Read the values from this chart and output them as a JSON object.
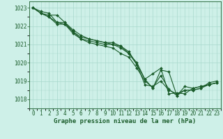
{
  "bg_color": "#cef0e8",
  "line_color": "#1a5c2a",
  "grid_color": "#a8d8cc",
  "xlabel": "Graphe pression niveau de la mer (hPa)",
  "xlabel_fontsize": 6.5,
  "tick_fontsize": 5.5,
  "xlim": [
    -0.5,
    23.5
  ],
  "ylim": [
    1017.5,
    1023.35
  ],
  "yticks": [
    1018,
    1019,
    1020,
    1021,
    1022,
    1023
  ],
  "xticks": [
    0,
    1,
    2,
    3,
    4,
    5,
    6,
    7,
    8,
    9,
    10,
    11,
    12,
    13,
    14,
    15,
    16,
    17,
    18,
    19,
    20,
    21,
    22,
    23
  ],
  "series": [
    [
      1023.0,
      1022.7,
      1022.6,
      1022.6,
      1022.2,
      1021.7,
      1021.4,
      1021.3,
      1021.2,
      1021.1,
      1021.1,
      1020.9,
      1020.6,
      1019.9,
      1019.1,
      1019.4,
      1019.7,
      1018.3,
      1018.35,
      1018.3,
      1018.6,
      1018.7,
      1018.8,
      1018.9
    ],
    [
      1023.0,
      1022.7,
      1022.5,
      1022.2,
      1022.1,
      1021.7,
      1021.3,
      1021.1,
      1021.0,
      1020.9,
      1020.8,
      1020.5,
      1020.3,
      1019.7,
      1019.0,
      1018.65,
      1019.3,
      1018.55,
      1018.2,
      1018.5,
      1018.5,
      1018.6,
      1018.8,
      1018.9
    ],
    [
      1023.0,
      1022.7,
      1022.5,
      1022.1,
      1022.1,
      1021.6,
      1021.3,
      1021.2,
      1021.1,
      1021.0,
      1021.0,
      1020.8,
      1020.5,
      1020.0,
      1019.1,
      1018.6,
      1019.6,
      1019.5,
      1018.2,
      1018.7,
      1018.6,
      1018.7,
      1018.8,
      1018.9
    ],
    [
      1023.0,
      1022.8,
      1022.7,
      1022.2,
      1022.2,
      1021.8,
      1021.5,
      1021.3,
      1021.2,
      1021.1,
      1021.0,
      1020.9,
      1020.5,
      1019.9,
      1018.8,
      1018.7,
      1019.0,
      1018.5,
      1018.3,
      1018.5,
      1018.5,
      1018.6,
      1018.9,
      1019.0
    ]
  ]
}
